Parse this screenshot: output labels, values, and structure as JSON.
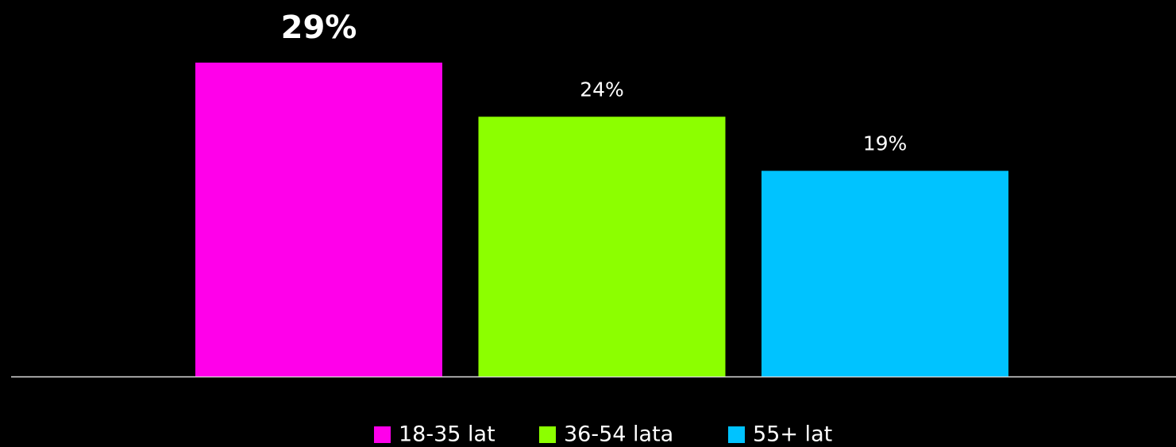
{
  "chart_data": {
    "type": "bar",
    "series": [
      {
        "name": "18-35 lat",
        "color": "#ff00ea",
        "values": [
          29
        ],
        "value_labels": [
          "29%"
        ]
      },
      {
        "name": "36-54 lata",
        "color": "#8cff00",
        "values": [
          24
        ],
        "value_labels": [
          "24%"
        ]
      },
      {
        "name": "55+ lat",
        "color": "#00c3ff",
        "values": [
          19
        ],
        "value_labels": [
          "19%"
        ]
      }
    ]
  }
}
